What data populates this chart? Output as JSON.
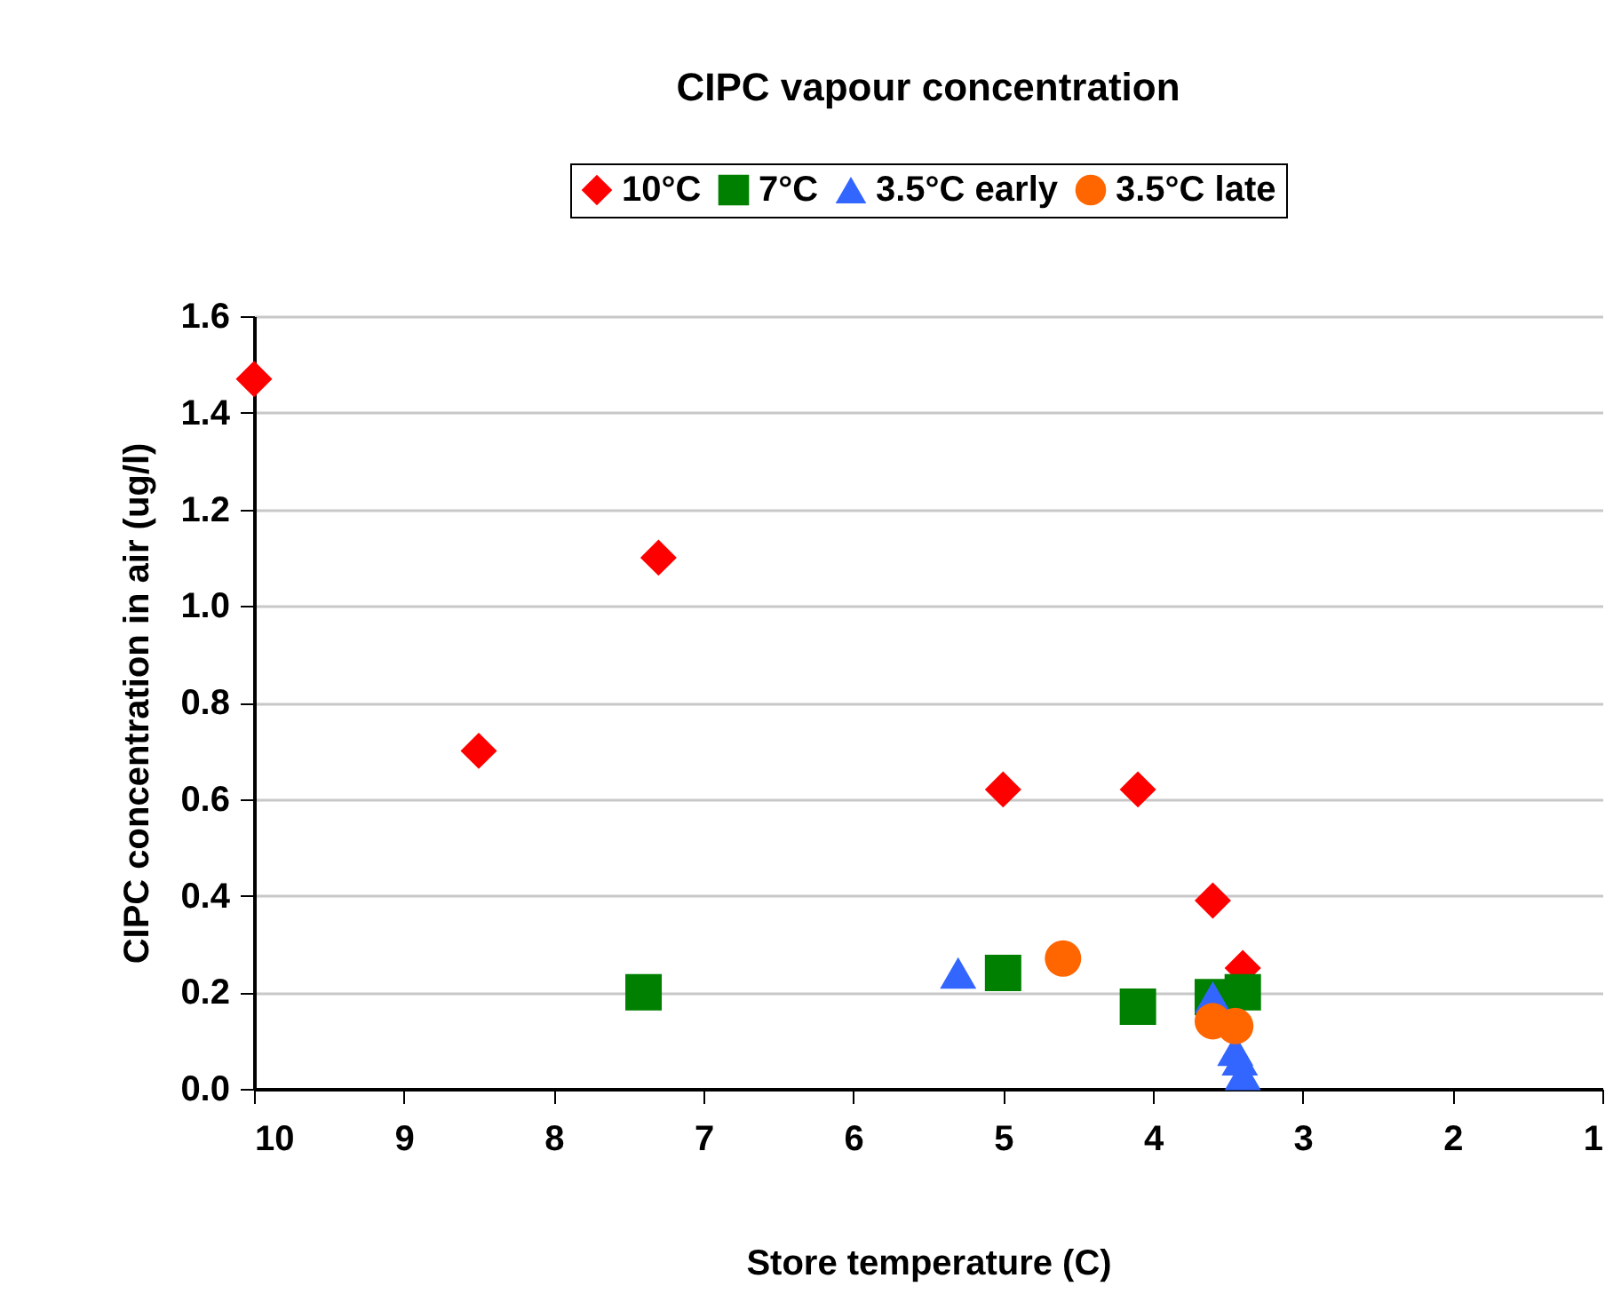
{
  "chart_data": {
    "type": "scatter",
    "title": "CIPC vapour concentration",
    "xlabel": "Store temperature (C)",
    "ylabel": "CIPC concentration in air (ug/l)",
    "xlim": [
      10,
      1
    ],
    "xticks": [
      10,
      9,
      8,
      7,
      6,
      5,
      4,
      3,
      2,
      1
    ],
    "ylim": [
      0,
      1.6
    ],
    "yticks": [
      {
        "value": 0,
        "label": "0.0"
      },
      {
        "value": 0.2,
        "label": "0.2"
      },
      {
        "value": 0.4,
        "label": "0.4"
      },
      {
        "value": 0.6,
        "label": "0.6"
      },
      {
        "value": 0.8,
        "label": "0.8"
      },
      {
        "value": 1,
        "label": "1.0"
      },
      {
        "value": 1.2,
        "label": "1.2"
      },
      {
        "value": 1.4,
        "label": "1.4"
      },
      {
        "value": 1.6,
        "label": "1.6"
      }
    ],
    "grid": "y",
    "legend": "top",
    "series": [
      {
        "name": "10°C",
        "color": "#ff0000",
        "marker": "diamond",
        "x": [
          10,
          8.5,
          7.3,
          5.0,
          4.1,
          3.6,
          3.4
        ],
        "values": [
          1.47,
          0.7,
          1.1,
          0.62,
          0.62,
          0.39,
          0.25
        ]
      },
      {
        "name": "7°C",
        "color": "#008000",
        "marker": "square",
        "x": [
          7.4,
          5.0,
          4.1,
          3.6,
          3.4
        ],
        "values": [
          0.2,
          0.24,
          0.17,
          0.19,
          0.2
        ]
      },
      {
        "name": "3.5°C early",
        "color": "#3366ff",
        "marker": "triangle",
        "x": [
          5.3,
          3.6,
          3.45,
          3.42,
          3.4
        ],
        "values": [
          0.24,
          0.19,
          0.08,
          0.06,
          0.03
        ]
      },
      {
        "name": "3.5°C late",
        "color": "#ff6600",
        "marker": "circle",
        "x": [
          4.6,
          3.6,
          3.45
        ],
        "values": [
          0.27,
          0.14,
          0.13
        ]
      }
    ]
  }
}
